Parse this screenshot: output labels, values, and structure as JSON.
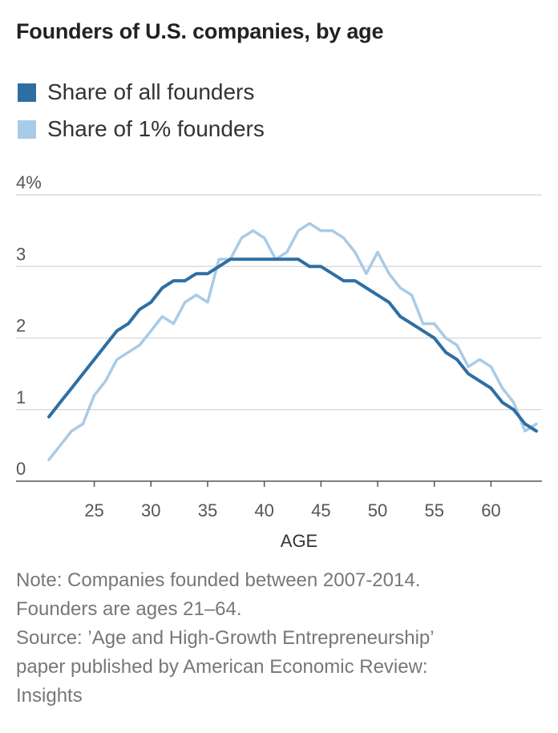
{
  "chart_data": {
    "type": "line",
    "title": "Founders of U.S. companies, by age",
    "xlabel": "AGE",
    "ylabel": "",
    "xlim": [
      20,
      65
    ],
    "ylim": [
      0,
      4
    ],
    "x_ticks": [
      25,
      30,
      35,
      40,
      45,
      50,
      55,
      60
    ],
    "y_ticks": [
      {
        "value": 0,
        "label": "0"
      },
      {
        "value": 1,
        "label": "1"
      },
      {
        "value": 2,
        "label": "2"
      },
      {
        "value": 3,
        "label": "3"
      },
      {
        "value": 4,
        "label": "4%"
      }
    ],
    "grid": true,
    "legend_position": "top-left",
    "x": [
      21,
      22,
      23,
      24,
      25,
      26,
      27,
      28,
      29,
      30,
      31,
      32,
      33,
      34,
      35,
      36,
      37,
      38,
      39,
      40,
      41,
      42,
      43,
      44,
      45,
      46,
      47,
      48,
      49,
      50,
      51,
      52,
      53,
      54,
      55,
      56,
      57,
      58,
      59,
      60,
      61,
      62,
      63,
      64
    ],
    "series": [
      {
        "name": "Share of all founders",
        "color": "#2e6fa3",
        "values": [
          0.9,
          1.1,
          1.3,
          1.5,
          1.7,
          1.9,
          2.1,
          2.2,
          2.4,
          2.5,
          2.7,
          2.8,
          2.8,
          2.9,
          2.9,
          3.0,
          3.1,
          3.1,
          3.1,
          3.1,
          3.1,
          3.1,
          3.1,
          3.0,
          3.0,
          2.9,
          2.8,
          2.8,
          2.7,
          2.6,
          2.5,
          2.3,
          2.2,
          2.1,
          2.0,
          1.8,
          1.7,
          1.5,
          1.4,
          1.3,
          1.1,
          1.0,
          0.8,
          0.7
        ]
      },
      {
        "name": "Share of 1% founders",
        "color": "#a8cbe7",
        "values": [
          0.3,
          0.5,
          0.7,
          0.8,
          1.2,
          1.4,
          1.7,
          1.8,
          1.9,
          2.1,
          2.3,
          2.2,
          2.5,
          2.6,
          2.5,
          3.1,
          3.1,
          3.4,
          3.5,
          3.4,
          3.1,
          3.2,
          3.5,
          3.6,
          3.5,
          3.5,
          3.4,
          3.2,
          2.9,
          3.2,
          2.9,
          2.7,
          2.6,
          2.2,
          2.2,
          2.0,
          1.9,
          1.6,
          1.7,
          1.6,
          1.3,
          1.1,
          0.7,
          0.8
        ]
      }
    ]
  },
  "notes": {
    "line1": "Note: Companies founded between 2007-2014.",
    "line2": "Founders are ages 21–64.",
    "line3": "Source: ’Age and High-Growth Entrepreneurship’",
    "line4": "paper published by American Economic Review:",
    "line5": "Insights"
  }
}
